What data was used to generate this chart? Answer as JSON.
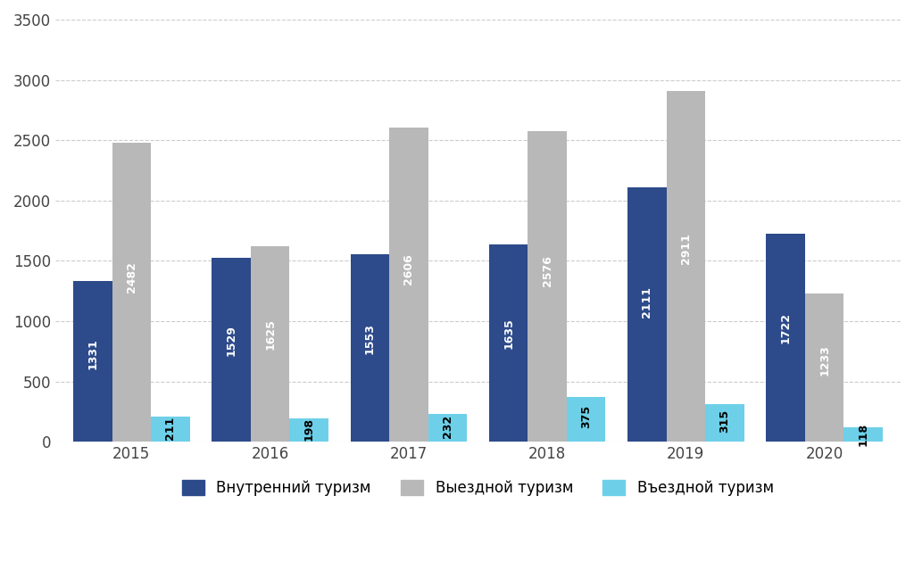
{
  "years": [
    "2015",
    "2016",
    "2017",
    "2018",
    "2019",
    "2020"
  ],
  "internal": [
    1331,
    1529,
    1553,
    1635,
    2111,
    1722
  ],
  "outbound": [
    2482,
    1625,
    2606,
    2576,
    2911,
    1233
  ],
  "inbound": [
    211,
    198,
    232,
    375,
    315,
    118
  ],
  "color_internal": "#2d4a8a",
  "color_outbound": "#b8b8b8",
  "color_inbound": "#6dd0e8",
  "background_color": "#ffffff",
  "legend_internal": "Внутренний туризм",
  "legend_outbound": "Выездной туризм",
  "legend_inbound": "Въездной туризм",
  "ylim": [
    0,
    3500
  ],
  "yticks": [
    0,
    500,
    1000,
    1500,
    2000,
    2500,
    3000,
    3500
  ],
  "bar_width": 0.28,
  "label_fontsize": 9,
  "tick_fontsize": 12,
  "legend_fontsize": 12,
  "grid_color": "#cccccc"
}
